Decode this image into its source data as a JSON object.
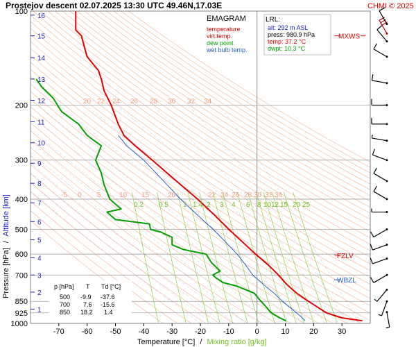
{
  "header": {
    "title": "Prostejov   descent   02.07.2025 13:30 UTC  49.46N,17.03E",
    "credit": "CHMI © 2025"
  },
  "legend": {
    "title": "EMAGRAM",
    "items": [
      {
        "label": "temperature",
        "color": "#e00000"
      },
      {
        "label": "virt.temp.",
        "color": "#e00000"
      },
      {
        "label": "dew point",
        "color": "#00a000"
      },
      {
        "label": "wet bulb temp.",
        "color": "#2060d0"
      }
    ]
  },
  "lrl": {
    "title": "LRL:",
    "lines": [
      {
        "text": "alt: 292 m ASL",
        "color": "#2020c0"
      },
      {
        "text": "press: 980.9 hPa",
        "color": "#000000"
      },
      {
        "text": "temp: 37.2 °C",
        "color": "#e00000"
      },
      {
        "text": "dwpt: 10.3 °C",
        "color": "#00a000"
      }
    ]
  },
  "axes": {
    "ylabel_pressure": "Pressure [hPa]",
    "ylabel_sep": "/",
    "ylabel_altitude": "Altitude [km]",
    "xlabel_temp": "Temperature [°C]",
    "xlabel_sep": "/",
    "xlabel_mix": "Mixing ratio [g/kg]"
  },
  "levels": [
    {
      "label": "MXWS",
      "color": "#e00000"
    },
    {
      "label": "FZLV",
      "color": "#e00000"
    },
    {
      "label": "WBZL",
      "color": "#2060d0"
    }
  ],
  "table": {
    "headers": [
      "p [hPa]",
      "T",
      "Td [°C]"
    ],
    "rows": [
      [
        "500",
        "-9.9",
        "-37.6"
      ],
      [
        "700",
        "7.6",
        "-15.6"
      ],
      [
        "850",
        "18.2",
        "1.4"
      ]
    ]
  },
  "colors": {
    "temperature": "#e00000",
    "dewpoint": "#00a000",
    "wetbulb": "#2060d0",
    "altitude": "#2020c0",
    "dry_adiabat": "#f0b090",
    "mixing_ratio": "#90d040",
    "moist_adiabat": "#b8b8d8"
  },
  "chart_data": {
    "type": "line",
    "x_scale": "linear",
    "y_scale": "log",
    "xlim": [
      -80,
      40
    ],
    "ylim": [
      1000,
      100
    ],
    "x_ticks": [
      -70,
      -60,
      -50,
      -40,
      -30,
      -20,
      -10,
      0,
      10,
      20,
      30
    ],
    "pressure_ticks": [
      100,
      200,
      300,
      400,
      500,
      600,
      700,
      850,
      925,
      1000
    ],
    "altitude_ticks_km": [
      {
        "km": 1,
        "p": 900
      },
      {
        "km": 2,
        "p": 794
      },
      {
        "km": 3,
        "p": 700
      },
      {
        "km": 4,
        "p": 616
      },
      {
        "km": 5,
        "p": 540
      },
      {
        "km": 6,
        "p": 472
      },
      {
        "km": 7,
        "p": 411
      },
      {
        "km": 8,
        "p": 356
      },
      {
        "km": 9,
        "p": 307
      },
      {
        "km": 10,
        "p": 264
      },
      {
        "km": 11,
        "p": 226
      },
      {
        "km": 12,
        "p": 193
      },
      {
        "km": 13,
        "p": 165
      },
      {
        "km": 14,
        "p": 141
      },
      {
        "km": 15,
        "p": 120
      },
      {
        "km": 16,
        "p": 103
      }
    ],
    "grid": true,
    "series": [
      {
        "name": "temperature",
        "color": "#e00000",
        "points": [
          {
            "p": 981,
            "t": 37.2
          },
          {
            "p": 960,
            "t": 30
          },
          {
            "p": 925,
            "t": 24.5
          },
          {
            "p": 850,
            "t": 18.2
          },
          {
            "p": 800,
            "t": 14
          },
          {
            "p": 750,
            "t": 10.5
          },
          {
            "p": 700,
            "t": 7.6
          },
          {
            "p": 650,
            "t": 4
          },
          {
            "p": 600,
            "t": -0.5
          },
          {
            "p": 550,
            "t": -5
          },
          {
            "p": 500,
            "t": -9.9
          },
          {
            "p": 450,
            "t": -15
          },
          {
            "p": 400,
            "t": -21
          },
          {
            "p": 350,
            "t": -28.5
          },
          {
            "p": 300,
            "t": -37
          },
          {
            "p": 270,
            "t": -43
          },
          {
            "p": 250,
            "t": -47
          },
          {
            "p": 230,
            "t": -49
          },
          {
            "p": 200,
            "t": -51.5
          },
          {
            "p": 180,
            "t": -54
          },
          {
            "p": 165,
            "t": -55
          },
          {
            "p": 155,
            "t": -56
          },
          {
            "p": 140,
            "t": -60
          },
          {
            "p": 130,
            "t": -61
          },
          {
            "p": 120,
            "t": -62
          },
          {
            "p": 115,
            "t": -64
          },
          {
            "p": 110,
            "t": -64
          },
          {
            "p": 100,
            "t": -64
          }
        ]
      },
      {
        "name": "dew point",
        "color": "#00a000",
        "points": [
          {
            "p": 981,
            "t": 10.3
          },
          {
            "p": 960,
            "t": 8
          },
          {
            "p": 925,
            "t": 5
          },
          {
            "p": 880,
            "t": 3
          },
          {
            "p": 850,
            "t": 1.4
          },
          {
            "p": 800,
            "t": -1
          },
          {
            "p": 760,
            "t": -7
          },
          {
            "p": 740,
            "t": -12
          },
          {
            "p": 715,
            "t": -14.5
          },
          {
            "p": 700,
            "t": -15.6
          },
          {
            "p": 680,
            "t": -13
          },
          {
            "p": 640,
            "t": -16
          },
          {
            "p": 600,
            "t": -18
          },
          {
            "p": 580,
            "t": -26
          },
          {
            "p": 560,
            "t": -30
          },
          {
            "p": 530,
            "t": -30
          },
          {
            "p": 510,
            "t": -34
          },
          {
            "p": 500,
            "t": -37.6
          },
          {
            "p": 480,
            "t": -38
          },
          {
            "p": 465,
            "t": -50
          },
          {
            "p": 440,
            "t": -53
          },
          {
            "p": 430,
            "t": -48
          },
          {
            "p": 400,
            "t": -52
          },
          {
            "p": 360,
            "t": -54
          },
          {
            "p": 330,
            "t": -55
          },
          {
            "p": 300,
            "t": -57
          },
          {
            "p": 270,
            "t": -55
          },
          {
            "p": 250,
            "t": -60
          },
          {
            "p": 230,
            "t": -63
          },
          {
            "p": 210,
            "t": -69
          },
          {
            "p": 190,
            "t": -72
          },
          {
            "p": 175,
            "t": -76
          },
          {
            "p": 165,
            "t": -78
          }
        ]
      },
      {
        "name": "wet bulb temp.",
        "color": "#2060d0",
        "points": [
          {
            "p": 981,
            "t": 17
          },
          {
            "p": 960,
            "t": 16
          },
          {
            "p": 925,
            "t": 14
          },
          {
            "p": 850,
            "t": 9
          },
          {
            "p": 800,
            "t": 6
          },
          {
            "p": 760,
            "t": 3
          },
          {
            "p": 700,
            "t": -1.5
          },
          {
            "p": 650,
            "t": -4
          },
          {
            "p": 600,
            "t": -7
          },
          {
            "p": 550,
            "t": -11
          },
          {
            "p": 500,
            "t": -15.5
          },
          {
            "p": 450,
            "t": -21
          },
          {
            "p": 400,
            "t": -27
          },
          {
            "p": 350,
            "t": -33
          },
          {
            "p": 300,
            "t": -40
          },
          {
            "p": 270,
            "t": -46
          },
          {
            "p": 250,
            "t": -49
          }
        ]
      }
    ],
    "dry_adiabat_labels": [
      -10,
      -5,
      0,
      5,
      10,
      15,
      20,
      22,
      24,
      26,
      28,
      30,
      32,
      34
    ],
    "mixing_ratio_labels": [
      0.2,
      0.5,
      1,
      1.4,
      2,
      3,
      4,
      6,
      8,
      10,
      12,
      15,
      20,
      25
    ],
    "wind_barbs": [
      {
        "p": 920,
        "dir": 170,
        "kt": 5
      },
      {
        "p": 850,
        "dir": 200,
        "kt": 5
      },
      {
        "p": 780,
        "dir": 220,
        "kt": 5
      },
      {
        "p": 700,
        "dir": 240,
        "kt": 10
      },
      {
        "p": 620,
        "dir": 250,
        "kt": 10
      },
      {
        "p": 560,
        "dir": 250,
        "kt": 10
      },
      {
        "p": 500,
        "dir": 240,
        "kt": 10
      },
      {
        "p": 440,
        "dir": 270,
        "kt": 5
      },
      {
        "p": 400,
        "dir": 300,
        "kt": 10
      },
      {
        "p": 350,
        "dir": 300,
        "kt": 10
      },
      {
        "p": 300,
        "dir": 290,
        "kt": 10
      },
      {
        "p": 260,
        "dir": 280,
        "kt": 5
      },
      {
        "p": 230,
        "dir": 270,
        "kt": 10
      },
      {
        "p": 200,
        "dir": 270,
        "kt": 10
      },
      {
        "p": 170,
        "dir": 280,
        "kt": 10
      },
      {
        "p": 140,
        "dir": 300,
        "kt": 10
      },
      {
        "p": 125,
        "dir": 320,
        "kt": 10
      },
      {
        "p": 118,
        "dir": 330,
        "kt": 50
      },
      {
        "p": 110,
        "dir": 330,
        "kt": 10
      }
    ],
    "level_markers": [
      {
        "label": "MXWS",
        "p": 120
      },
      {
        "label": "FZLV",
        "p": 605
      },
      {
        "label": "WBZL",
        "p": 725
      }
    ]
  }
}
